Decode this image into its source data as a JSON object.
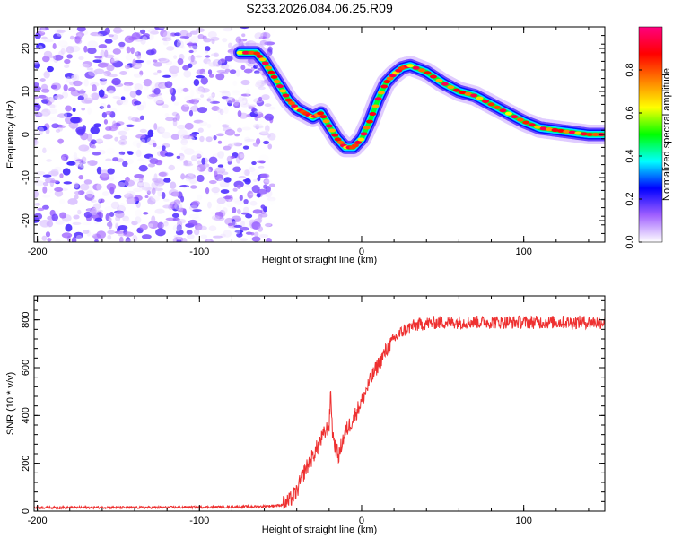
{
  "figure": {
    "title": "S233.2026.084.06.25.R09"
  },
  "chart_data": [
    {
      "type": "heatmap",
      "xlabel": "Height of straight line (km)",
      "ylabel": "Frequency (Hz)",
      "xlim": [
        -202,
        150
      ],
      "ylim": [
        -25,
        25
      ],
      "xticks": [
        -200,
        -100,
        0,
        100
      ],
      "xtick_labels": [
        "-200",
        "-100",
        "0",
        "100"
      ],
      "yticks": [
        -20,
        -10,
        0,
        10,
        20
      ],
      "ytick_labels": [
        "-20",
        "-10",
        "0",
        "10",
        "20"
      ],
      "grid": false,
      "noise_region_x": [
        -202,
        -55
      ],
      "ridge": {
        "x": [
          -75,
          -65,
          -60,
          -55,
          -50,
          -45,
          -40,
          -35,
          -30,
          -25,
          -20,
          -15,
          -10,
          -5,
          0,
          5,
          10,
          15,
          20,
          25,
          30,
          40,
          50,
          60,
          70,
          80,
          90,
          100,
          110,
          120,
          130,
          140,
          150
        ],
        "y": [
          19,
          19,
          17,
          14,
          11,
          8,
          6,
          5,
          4,
          5,
          2,
          -1,
          -3,
          -3,
          -1,
          3,
          8,
          12,
          14,
          15.5,
          16,
          14.5,
          12,
          10,
          9,
          7,
          5,
          3,
          1.5,
          1,
          0.5,
          0,
          0
        ]
      },
      "colorbar": {
        "label": "Normalized spectral amplitude",
        "range": [
          0,
          1
        ],
        "ticks": [
          0.0,
          0.2,
          0.4,
          0.6,
          0.8
        ],
        "tick_labels": [
          "0.0",
          "0.2",
          "0.4",
          "0.6",
          "0.8"
        ],
        "colormap": [
          "#ffffff",
          "#a060ff",
          "#0000ff",
          "#00ffff",
          "#00ff00",
          "#ffff00",
          "#ff8000",
          "#ff0000",
          "#ff0080"
        ]
      }
    },
    {
      "type": "line",
      "xlabel": "Height of straight line (km)",
      "ylabel": "SNR (10 * v/v)",
      "xlim": [
        -202,
        150
      ],
      "ylim": [
        0,
        900
      ],
      "xticks": [
        -200,
        -100,
        0,
        100
      ],
      "xtick_labels": [
        "-200",
        "-100",
        "0",
        "100"
      ],
      "yticks": [
        0,
        200,
        400,
        600,
        800
      ],
      "ytick_labels": [
        "0",
        "200",
        "400",
        "600",
        "800"
      ],
      "grid": false,
      "color": "#ee3030",
      "x": [
        -202,
        -180,
        -160,
        -140,
        -120,
        -100,
        -80,
        -60,
        -50,
        -45,
        -40,
        -38,
        -35,
        -30,
        -25,
        -20,
        -19,
        -18,
        -16,
        -14,
        -12,
        -10,
        -5,
        0,
        5,
        10,
        15,
        20,
        25,
        30,
        35,
        40,
        50,
        60,
        70,
        80,
        90,
        100,
        110,
        120,
        130,
        140,
        150
      ],
      "y": [
        15,
        15,
        16,
        15,
        16,
        17,
        18,
        20,
        25,
        40,
        80,
        120,
        170,
        230,
        300,
        360,
        500,
        330,
        260,
        230,
        290,
        330,
        390,
        460,
        540,
        610,
        670,
        720,
        750,
        770,
        780,
        785,
        790,
        790,
        790,
        790,
        790,
        790,
        790,
        790,
        790,
        790,
        790
      ]
    }
  ]
}
